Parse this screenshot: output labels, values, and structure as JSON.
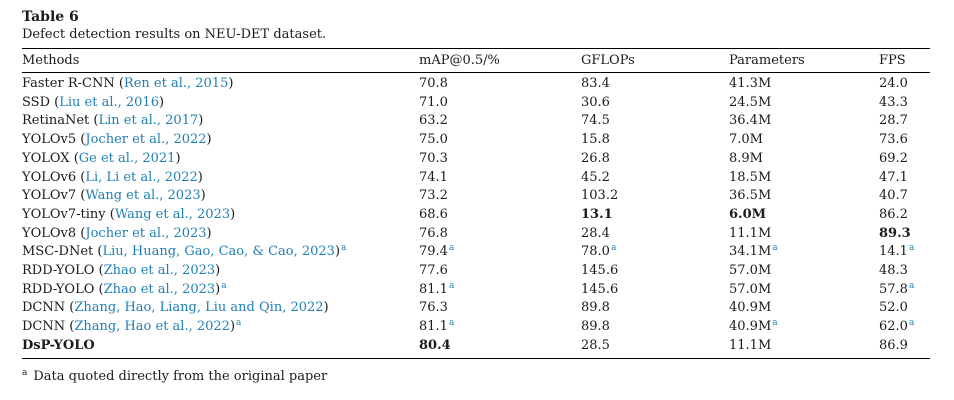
{
  "caption": {
    "number": "Table 6",
    "text": "Defect detection results on NEU-DET dataset."
  },
  "headers": {
    "methods": "Methods",
    "map": "mAP@0.5/%",
    "gflops": "GFLOPs",
    "params": "Parameters",
    "fps": "FPS"
  },
  "rows": [
    {
      "name": "Faster R-CNN",
      "cite": "Ren et al., 2015",
      "map": "70.8",
      "gflops": "83.4",
      "params": "41.3M",
      "fps": "24.0"
    },
    {
      "name": "SSD",
      "cite": "Liu et al., 2016",
      "map": "71.0",
      "gflops": "30.6",
      "params": "24.5M",
      "fps": "43.3"
    },
    {
      "name": "RetinaNet",
      "cite": "Lin et al., 2017",
      "map": "63.2",
      "gflops": "74.5",
      "params": "36.4M",
      "fps": "28.7"
    },
    {
      "name": "YOLOv5",
      "cite": "Jocher et al., 2022",
      "map": "75.0",
      "gflops": "15.8",
      "params": "7.0M",
      "fps": "73.6"
    },
    {
      "name": "YOLOX",
      "cite": "Ge et al., 2021",
      "map": "70.3",
      "gflops": "26.8",
      "params": "8.9M",
      "fps": "69.2"
    },
    {
      "name": "YOLOv6",
      "cite": "Li, Li et al., 2022",
      "map": "74.1",
      "gflops": "45.2",
      "params": "18.5M",
      "fps": "47.1"
    },
    {
      "name": "YOLOv7",
      "cite": "Wang et al., 2023",
      "map": "73.2",
      "gflops": "103.2",
      "params": "36.5M",
      "fps": "40.7"
    },
    {
      "name": "YOLOv7-tiny",
      "cite": "Wang et al., 2023",
      "map": "68.6",
      "gflops": "13.1",
      "params": "6.0M",
      "fps": "86.2",
      "bold": [
        "gflops",
        "params"
      ]
    },
    {
      "name": "YOLOv8",
      "cite": "Jocher et al., 2023",
      "map": "76.8",
      "gflops": "28.4",
      "params": "11.1M",
      "fps": "89.3",
      "bold": [
        "fps"
      ]
    },
    {
      "name": "MSC-DNet",
      "cite": "Liu, Huang, Gao, Cao, & Cao, 2023",
      "note": "a",
      "map": "79.4",
      "gflops": "78.0",
      "params": "34.1M",
      "fps": "14.1",
      "notes": [
        "map",
        "gflops",
        "params",
        "fps"
      ]
    },
    {
      "name": "RDD-YOLO",
      "cite": "Zhao et al., 2023",
      "map": "77.6",
      "gflops": "145.6",
      "params": "57.0M",
      "fps": "48.3"
    },
    {
      "name": "RDD-YOLO",
      "cite": "Zhao et al., 2023",
      "note": "a",
      "map": "81.1",
      "gflops": "145.6",
      "params": "57.0M",
      "fps": "57.8",
      "notes": [
        "map",
        "fps"
      ]
    },
    {
      "name": "DCNN",
      "cite": "Zhang, Hao, Liang, Liu and Qin, 2022",
      "map": "76.3",
      "gflops": "89.8",
      "params": "40.9M",
      "fps": "52.0"
    },
    {
      "name": "DCNN",
      "cite": "Zhang, Hao et al., 2022",
      "note": "a",
      "map": "81.1",
      "gflops": "89.8",
      "params": "40.9M",
      "fps": "62.0",
      "notes": [
        "map",
        "params",
        "fps"
      ]
    },
    {
      "name": "DsP-YOLO",
      "map": "80.4",
      "gflops": "28.5",
      "params": "11.1M",
      "fps": "86.9",
      "bold": [
        "name",
        "map"
      ]
    }
  ],
  "footnote": {
    "mark": "a",
    "text": "Data quoted directly from the original paper"
  }
}
